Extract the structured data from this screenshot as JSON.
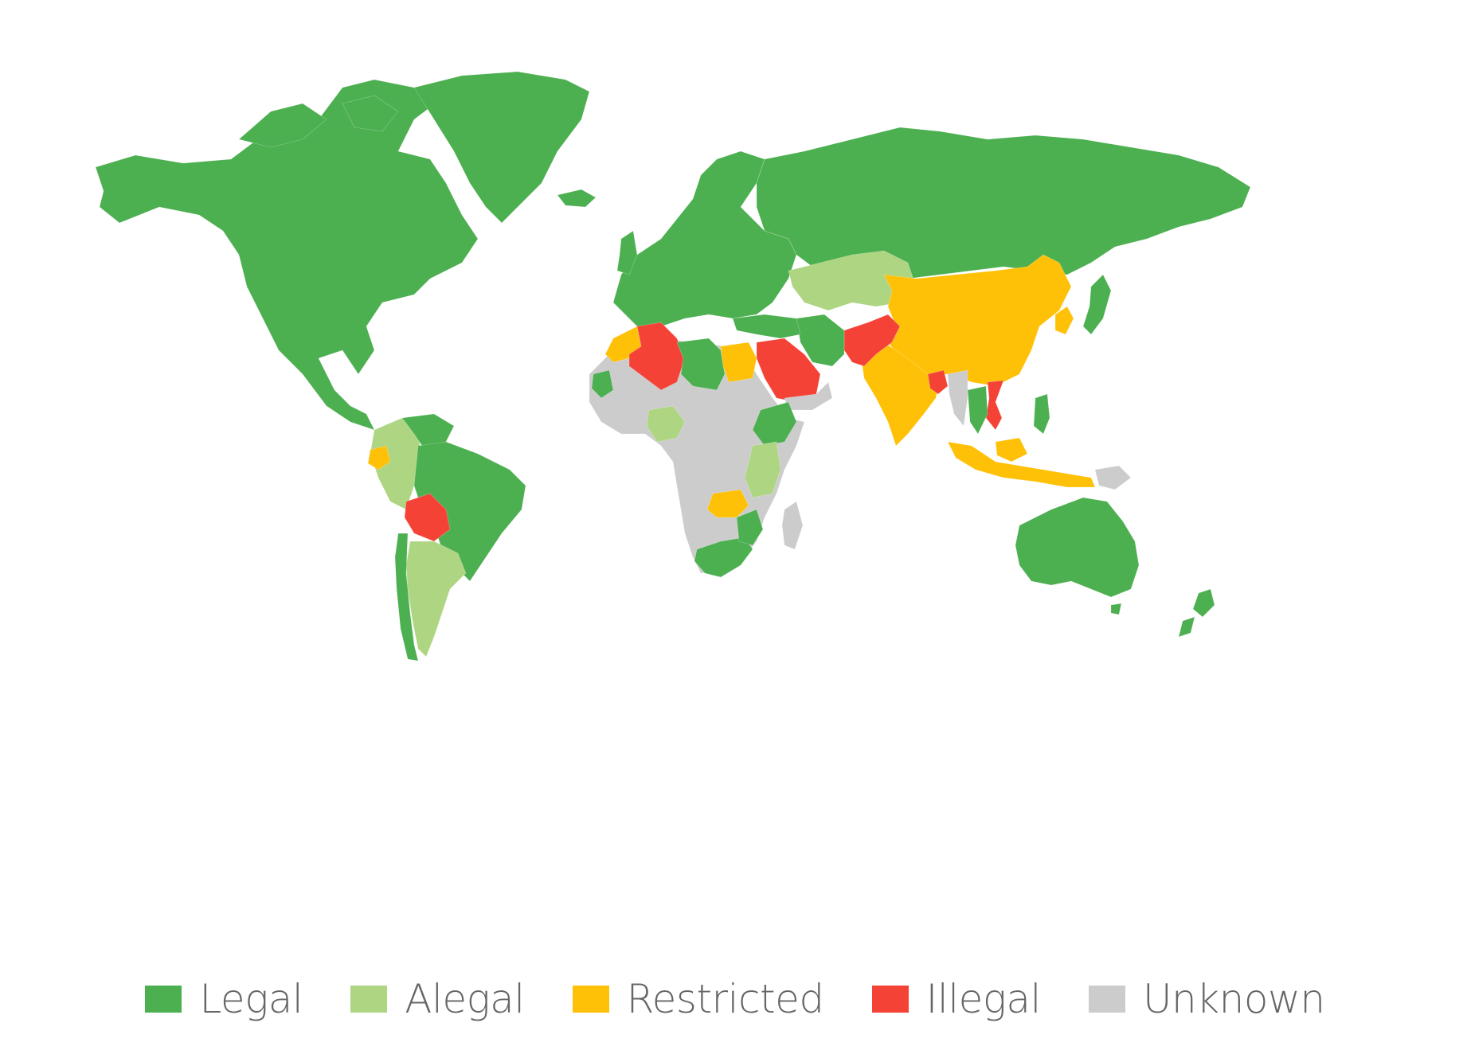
{
  "map": {
    "categories": [
      {
        "key": "legal",
        "label": "Legal",
        "color": "#4caf50"
      },
      {
        "key": "alegal",
        "label": "Alegal",
        "color": "#aed581"
      },
      {
        "key": "restricted",
        "label": "Restricted",
        "color": "#ffc107"
      },
      {
        "key": "illegal",
        "label": "Illegal",
        "color": "#f44336"
      },
      {
        "key": "unknown",
        "label": "Unknown",
        "color": "#cccccc"
      }
    ],
    "regions": [
      {
        "name": "North America",
        "status": "legal"
      },
      {
        "name": "Greenland",
        "status": "legal"
      },
      {
        "name": "Europe",
        "status": "legal"
      },
      {
        "name": "Russia",
        "status": "legal"
      },
      {
        "name": "Central Asia",
        "status": "alegal"
      },
      {
        "name": "China",
        "status": "restricted"
      },
      {
        "name": "India",
        "status": "restricted"
      },
      {
        "name": "Indonesia",
        "status": "restricted"
      },
      {
        "name": "Pakistan / Afghanistan",
        "status": "illegal"
      },
      {
        "name": "Saudi Arabia",
        "status": "illegal"
      },
      {
        "name": "Algeria",
        "status": "illegal"
      },
      {
        "name": "Bolivia",
        "status": "illegal"
      },
      {
        "name": "Bangladesh",
        "status": "illegal"
      },
      {
        "name": "Vietnam",
        "status": "illegal"
      },
      {
        "name": "Egypt",
        "status": "restricted"
      },
      {
        "name": "Morocco",
        "status": "restricted"
      },
      {
        "name": "Ecuador",
        "status": "restricted"
      },
      {
        "name": "Zambia",
        "status": "restricted"
      },
      {
        "name": "Brazil",
        "status": "legal"
      },
      {
        "name": "Argentina / Paraguay",
        "status": "alegal"
      },
      {
        "name": "Chile",
        "status": "legal"
      },
      {
        "name": "Colombia / Peru",
        "status": "alegal"
      },
      {
        "name": "Venezuela",
        "status": "legal"
      },
      {
        "name": "Africa (most)",
        "status": "unknown"
      },
      {
        "name": "Nigeria",
        "status": "alegal"
      },
      {
        "name": "Kenya / Tanzania",
        "status": "alegal"
      },
      {
        "name": "Ethiopia",
        "status": "legal"
      },
      {
        "name": "South Africa",
        "status": "legal"
      },
      {
        "name": "Libya",
        "status": "legal"
      },
      {
        "name": "Japan",
        "status": "legal"
      },
      {
        "name": "Australia",
        "status": "legal"
      },
      {
        "name": "New Zealand",
        "status": "legal"
      },
      {
        "name": "Madagascar",
        "status": "unknown"
      },
      {
        "name": "Iran",
        "status": "legal"
      },
      {
        "name": "Myanmar",
        "status": "unknown"
      },
      {
        "name": "Philippines",
        "status": "legal"
      },
      {
        "name": "Papua New Guinea",
        "status": "unknown"
      }
    ]
  }
}
